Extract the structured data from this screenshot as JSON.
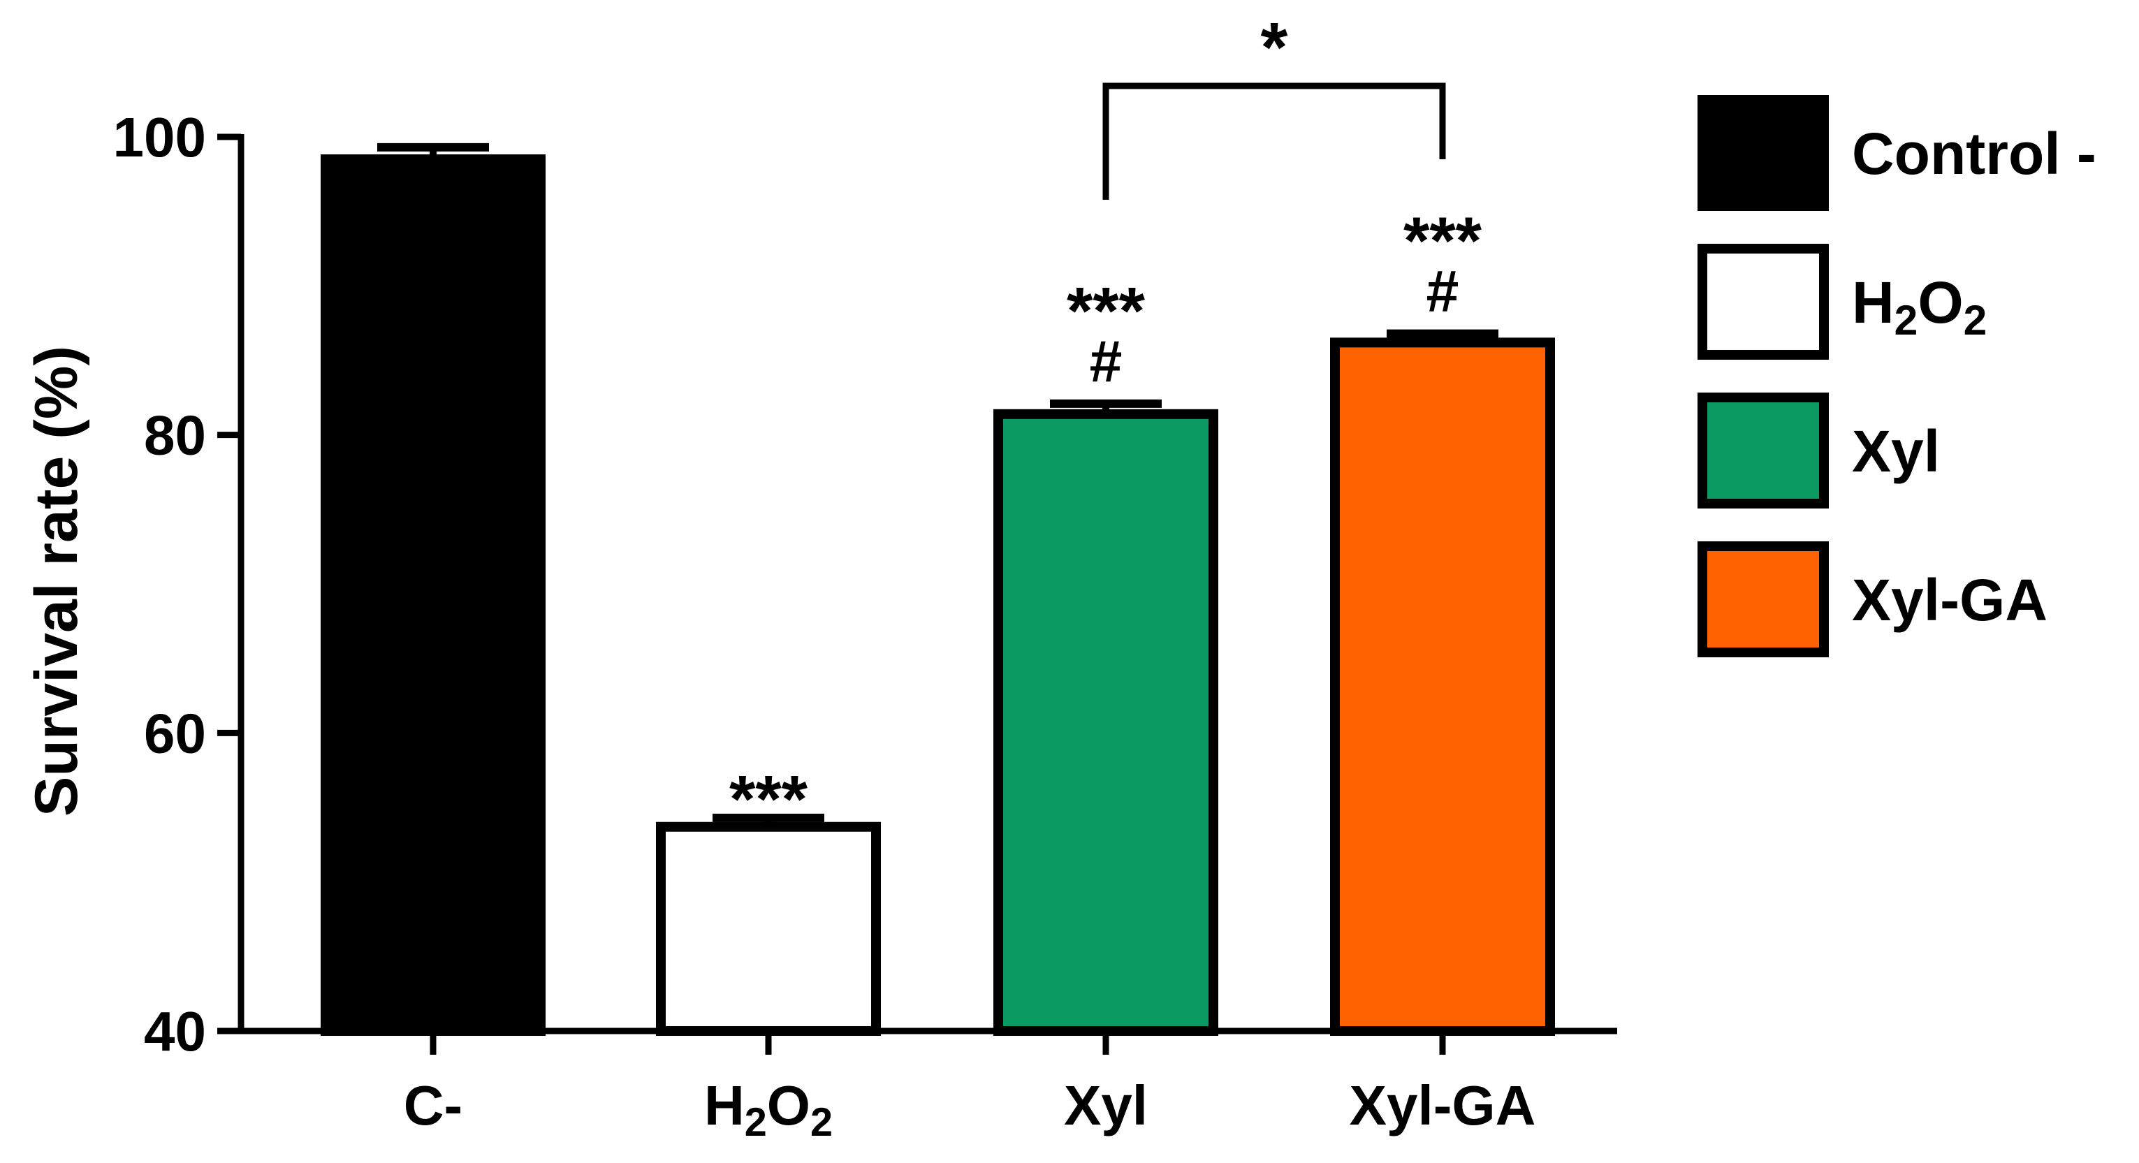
{
  "chart_data": {
    "type": "bar",
    "ylabel": "Survival rate (%)",
    "ylim": [
      40,
      100
    ],
    "yticks": [
      40,
      60,
      80,
      100
    ],
    "categories": [
      "C-",
      "H2O2",
      "Xyl",
      "Xyl-GA"
    ],
    "tick_labels": [
      {
        "base": "C-",
        "sub": "",
        "tail": ""
      },
      {
        "base": "H",
        "sub": "2",
        "tail": "O",
        "sub2": "2"
      },
      {
        "base": "Xyl",
        "sub": "",
        "tail": ""
      },
      {
        "base": "Xyl-GA",
        "sub": "",
        "tail": ""
      }
    ],
    "values": [
      98.5,
      53.7,
      81.4,
      86.2
    ],
    "errors": [
      0.8,
      0.6,
      0.7,
      0.6
    ],
    "colors": [
      "#000000",
      "#ffffff",
      "#0c9a63",
      "#ff6200"
    ],
    "annotations": [
      {
        "category": "H2O2",
        "lines": [
          "***"
        ]
      },
      {
        "category": "Xyl",
        "lines": [
          "***",
          "#"
        ]
      },
      {
        "category": "Xyl-GA",
        "lines": [
          "***",
          "#"
        ]
      }
    ],
    "comparison": {
      "from": "Xyl",
      "to": "Xyl-GA",
      "label": "*"
    },
    "legend": {
      "position": "right",
      "entries": [
        {
          "base": "Control -",
          "sub": "",
          "tail": "",
          "color": "#000000"
        },
        {
          "base": "H",
          "sub": "2",
          "tail": "O",
          "sub2": "2",
          "color": "#ffffff"
        },
        {
          "base": "Xyl",
          "sub": "",
          "tail": "",
          "color": "#0c9a63"
        },
        {
          "base": "Xyl-GA",
          "sub": "",
          "tail": "",
          "color": "#ff6200"
        }
      ]
    }
  }
}
